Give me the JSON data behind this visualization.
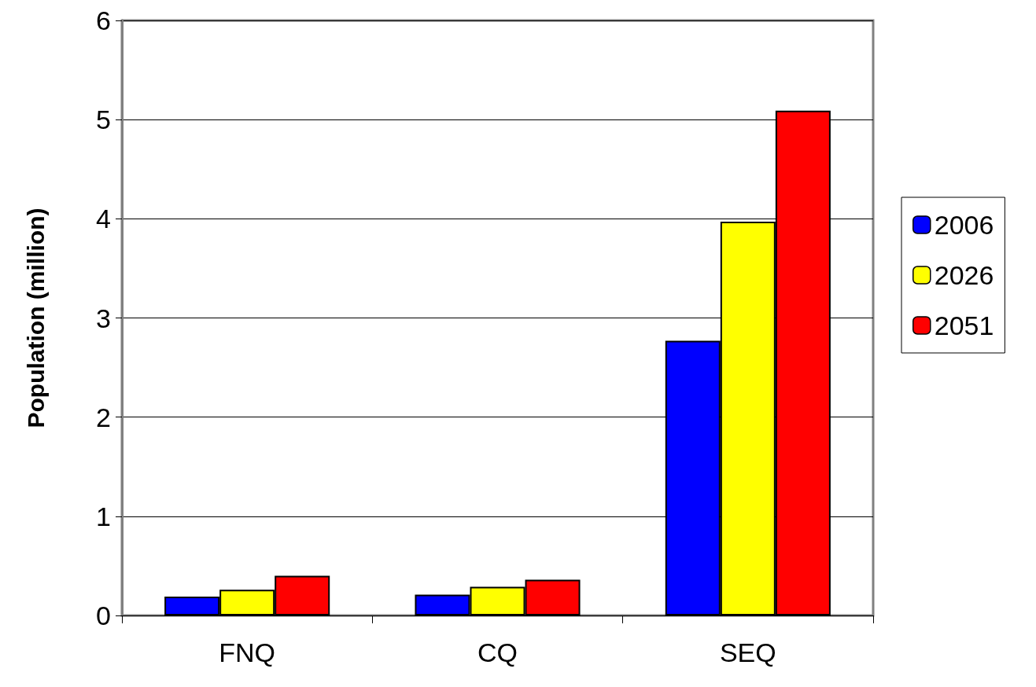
{
  "chart_data": {
    "type": "bar",
    "ylabel": "Population (million)",
    "categories": [
      "FNQ",
      "CQ",
      "SEQ"
    ],
    "series": [
      {
        "name": "2006",
        "color": "#0000ff",
        "values": [
          0.19,
          0.21,
          2.77
        ]
      },
      {
        "name": "2026",
        "color": "#ffff00",
        "values": [
          0.26,
          0.29,
          3.97
        ]
      },
      {
        "name": "2051",
        "color": "#ff0000",
        "values": [
          0.4,
          0.36,
          5.09
        ]
      }
    ],
    "ylim": [
      0,
      6
    ],
    "yticks": [
      0,
      1,
      2,
      3,
      4,
      5,
      6
    ],
    "grid": "y",
    "legend": "right"
  }
}
